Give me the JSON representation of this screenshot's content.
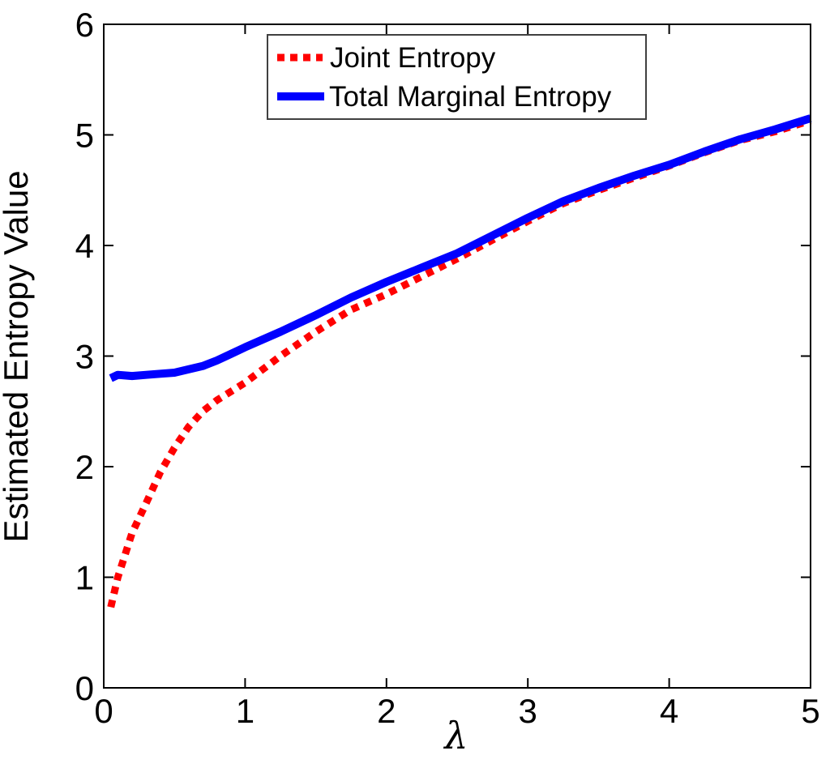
{
  "figure": {
    "background_color": "#ffffff",
    "axis_color": "#000000"
  },
  "chart_data": {
    "type": "line",
    "title": "",
    "xlabel": "λ",
    "ylabel": "Estimated Entropy Value",
    "xlim": [
      0,
      5
    ],
    "ylim": [
      0,
      6
    ],
    "xticks": [
      0,
      1,
      2,
      3,
      4,
      5
    ],
    "yticks": [
      0,
      1,
      2,
      3,
      4,
      5,
      6
    ],
    "grid": false,
    "legend_position": "top-center-inside",
    "x": [
      0.05,
      0.1,
      0.2,
      0.3,
      0.4,
      0.5,
      0.6,
      0.7,
      0.8,
      0.9,
      1.0,
      1.25,
      1.5,
      1.75,
      2.0,
      2.25,
      2.5,
      2.75,
      3.0,
      3.25,
      3.5,
      3.75,
      4.0,
      4.25,
      4.5,
      4.75,
      5.0
    ],
    "series": [
      {
        "name": "Joint Entropy",
        "color": "#ff0000",
        "style": "dotted",
        "line_width": 9,
        "values": [
          0.73,
          1.0,
          1.4,
          1.67,
          1.95,
          2.17,
          2.36,
          2.5,
          2.6,
          2.68,
          2.76,
          3.0,
          3.22,
          3.42,
          3.56,
          3.72,
          3.88,
          4.05,
          4.22,
          4.38,
          4.5,
          4.61,
          4.72,
          4.84,
          4.95,
          5.03,
          5.13
        ]
      },
      {
        "name": "Total Marginal Entropy",
        "color": "#0000ff",
        "style": "solid",
        "line_width": 10,
        "values": [
          2.8,
          2.83,
          2.82,
          2.83,
          2.84,
          2.85,
          2.88,
          2.91,
          2.96,
          3.02,
          3.08,
          3.22,
          3.37,
          3.53,
          3.67,
          3.8,
          3.93,
          4.09,
          4.25,
          4.4,
          4.52,
          4.63,
          4.73,
          4.85,
          4.96,
          5.05,
          5.15
        ]
      }
    ]
  }
}
